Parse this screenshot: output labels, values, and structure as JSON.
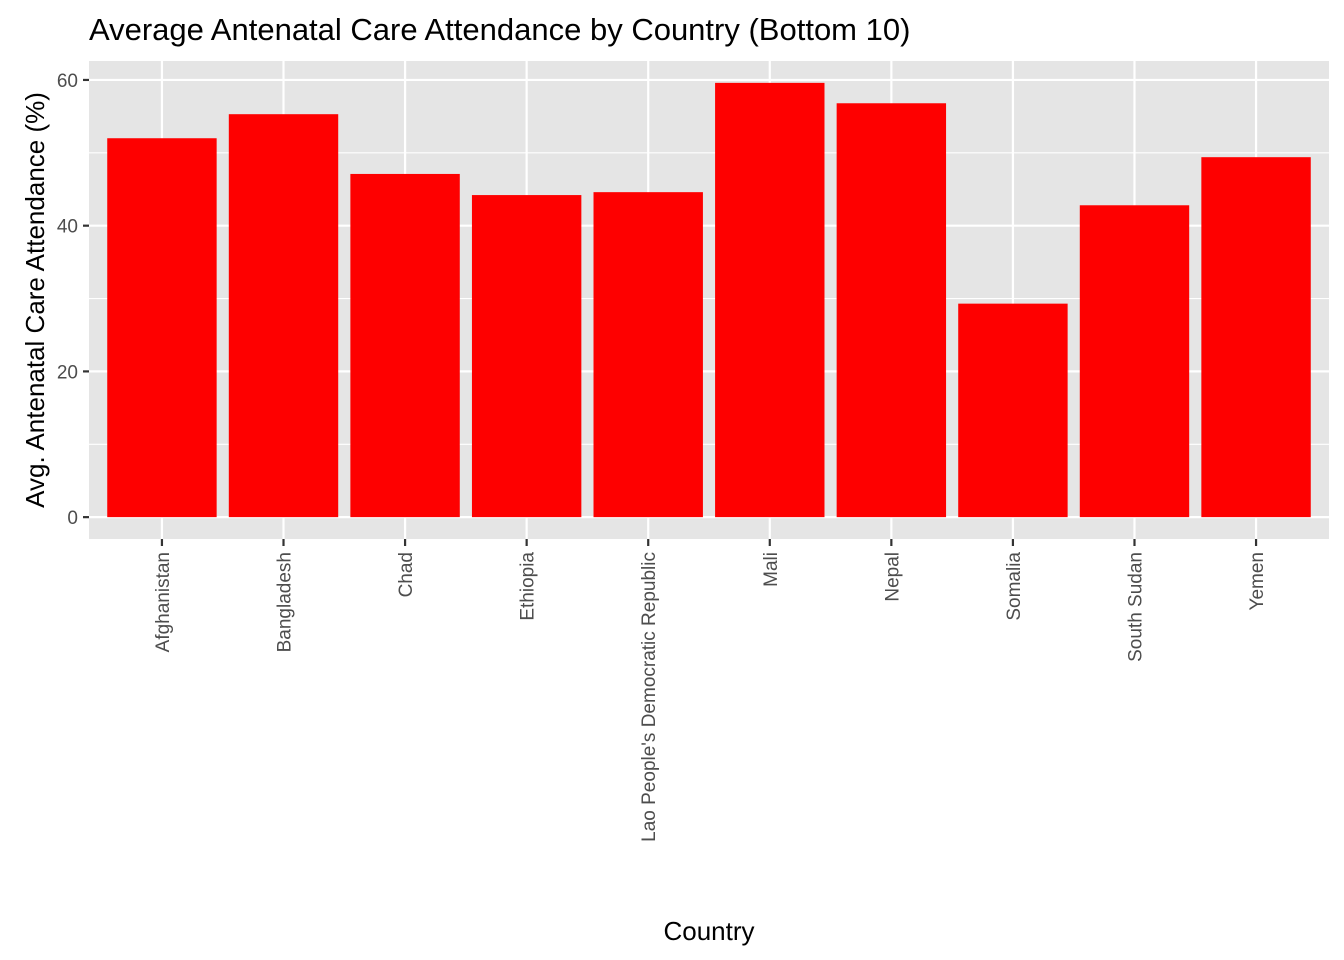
{
  "chart_data": {
    "type": "bar",
    "title": "Average Antenatal Care Attendance by Country (Bottom 10)",
    "xlabel": "Country",
    "ylabel": "Avg. Antenatal Care Attendance (%)",
    "categories": [
      "Afghanistan",
      "Bangladesh",
      "Chad",
      "Ethiopia",
      "Lao People's Democratic Republic",
      "Mali",
      "Nepal",
      "Somalia",
      "South Sudan",
      "Yemen"
    ],
    "values": [
      52.0,
      55.3,
      47.1,
      44.2,
      44.6,
      59.6,
      56.8,
      29.3,
      42.8,
      49.4
    ],
    "ylim": [
      -3,
      62.6
    ],
    "yticks": [
      0,
      20,
      40,
      60
    ],
    "grid": true,
    "x_tick_label_rotation": "vertical",
    "colors": {
      "bar": "#fe0000",
      "panel_background": "#e5e5e5",
      "grid": "#ffffff",
      "tick_label": "#4d4d4d",
      "tick_mark": "#333333"
    }
  }
}
